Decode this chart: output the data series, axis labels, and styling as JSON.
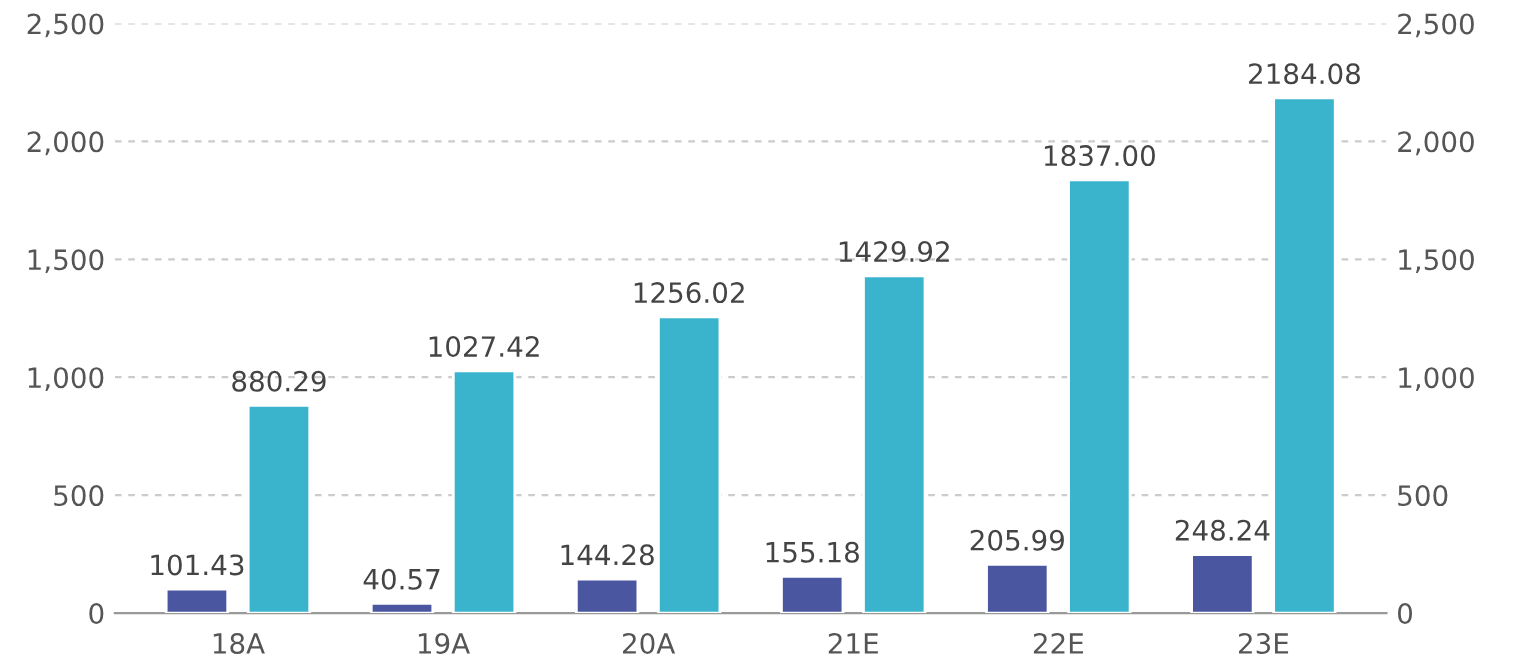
{
  "chart_data": {
    "type": "bar",
    "categories": [
      "18A",
      "19A",
      "20A",
      "21E",
      "22E",
      "23E"
    ],
    "series": [
      {
        "color": "#4b56a0",
        "values": [
          101.43,
          40.57,
          144.28,
          155.18,
          205.99,
          248.24
        ],
        "value_labels": [
          "101.43",
          "40.57",
          "144.28",
          "155.18",
          "205.99",
          "248.24"
        ]
      },
      {
        "color": "#3ab4cc",
        "values": [
          880.29,
          1027.42,
          1256.02,
          1429.92,
          1837.0,
          2184.08
        ],
        "value_labels": [
          "880.29",
          "1027.42",
          "1256.02",
          "1429.92",
          "1837.00",
          "2184.08"
        ]
      }
    ],
    "ylim": [
      0,
      2500
    ],
    "yticks": [
      0,
      500,
      {
        "value": 1000,
        "label": "1,000"
      },
      {
        "value": 1500,
        "label": "1,500"
      },
      {
        "value": 2000,
        "label": "2,000"
      },
      {
        "value": 2500,
        "label": "2,500"
      }
    ],
    "y2lim": [
      0,
      2500
    ],
    "y2ticks": [
      0,
      500,
      {
        "value": 1000,
        "label": "1,000"
      },
      {
        "value": 1500,
        "label": "1,500"
      },
      {
        "value": 2000,
        "label": "2,000"
      },
      {
        "value": 2500,
        "label": "2,500"
      }
    ],
    "grid": "y"
  }
}
